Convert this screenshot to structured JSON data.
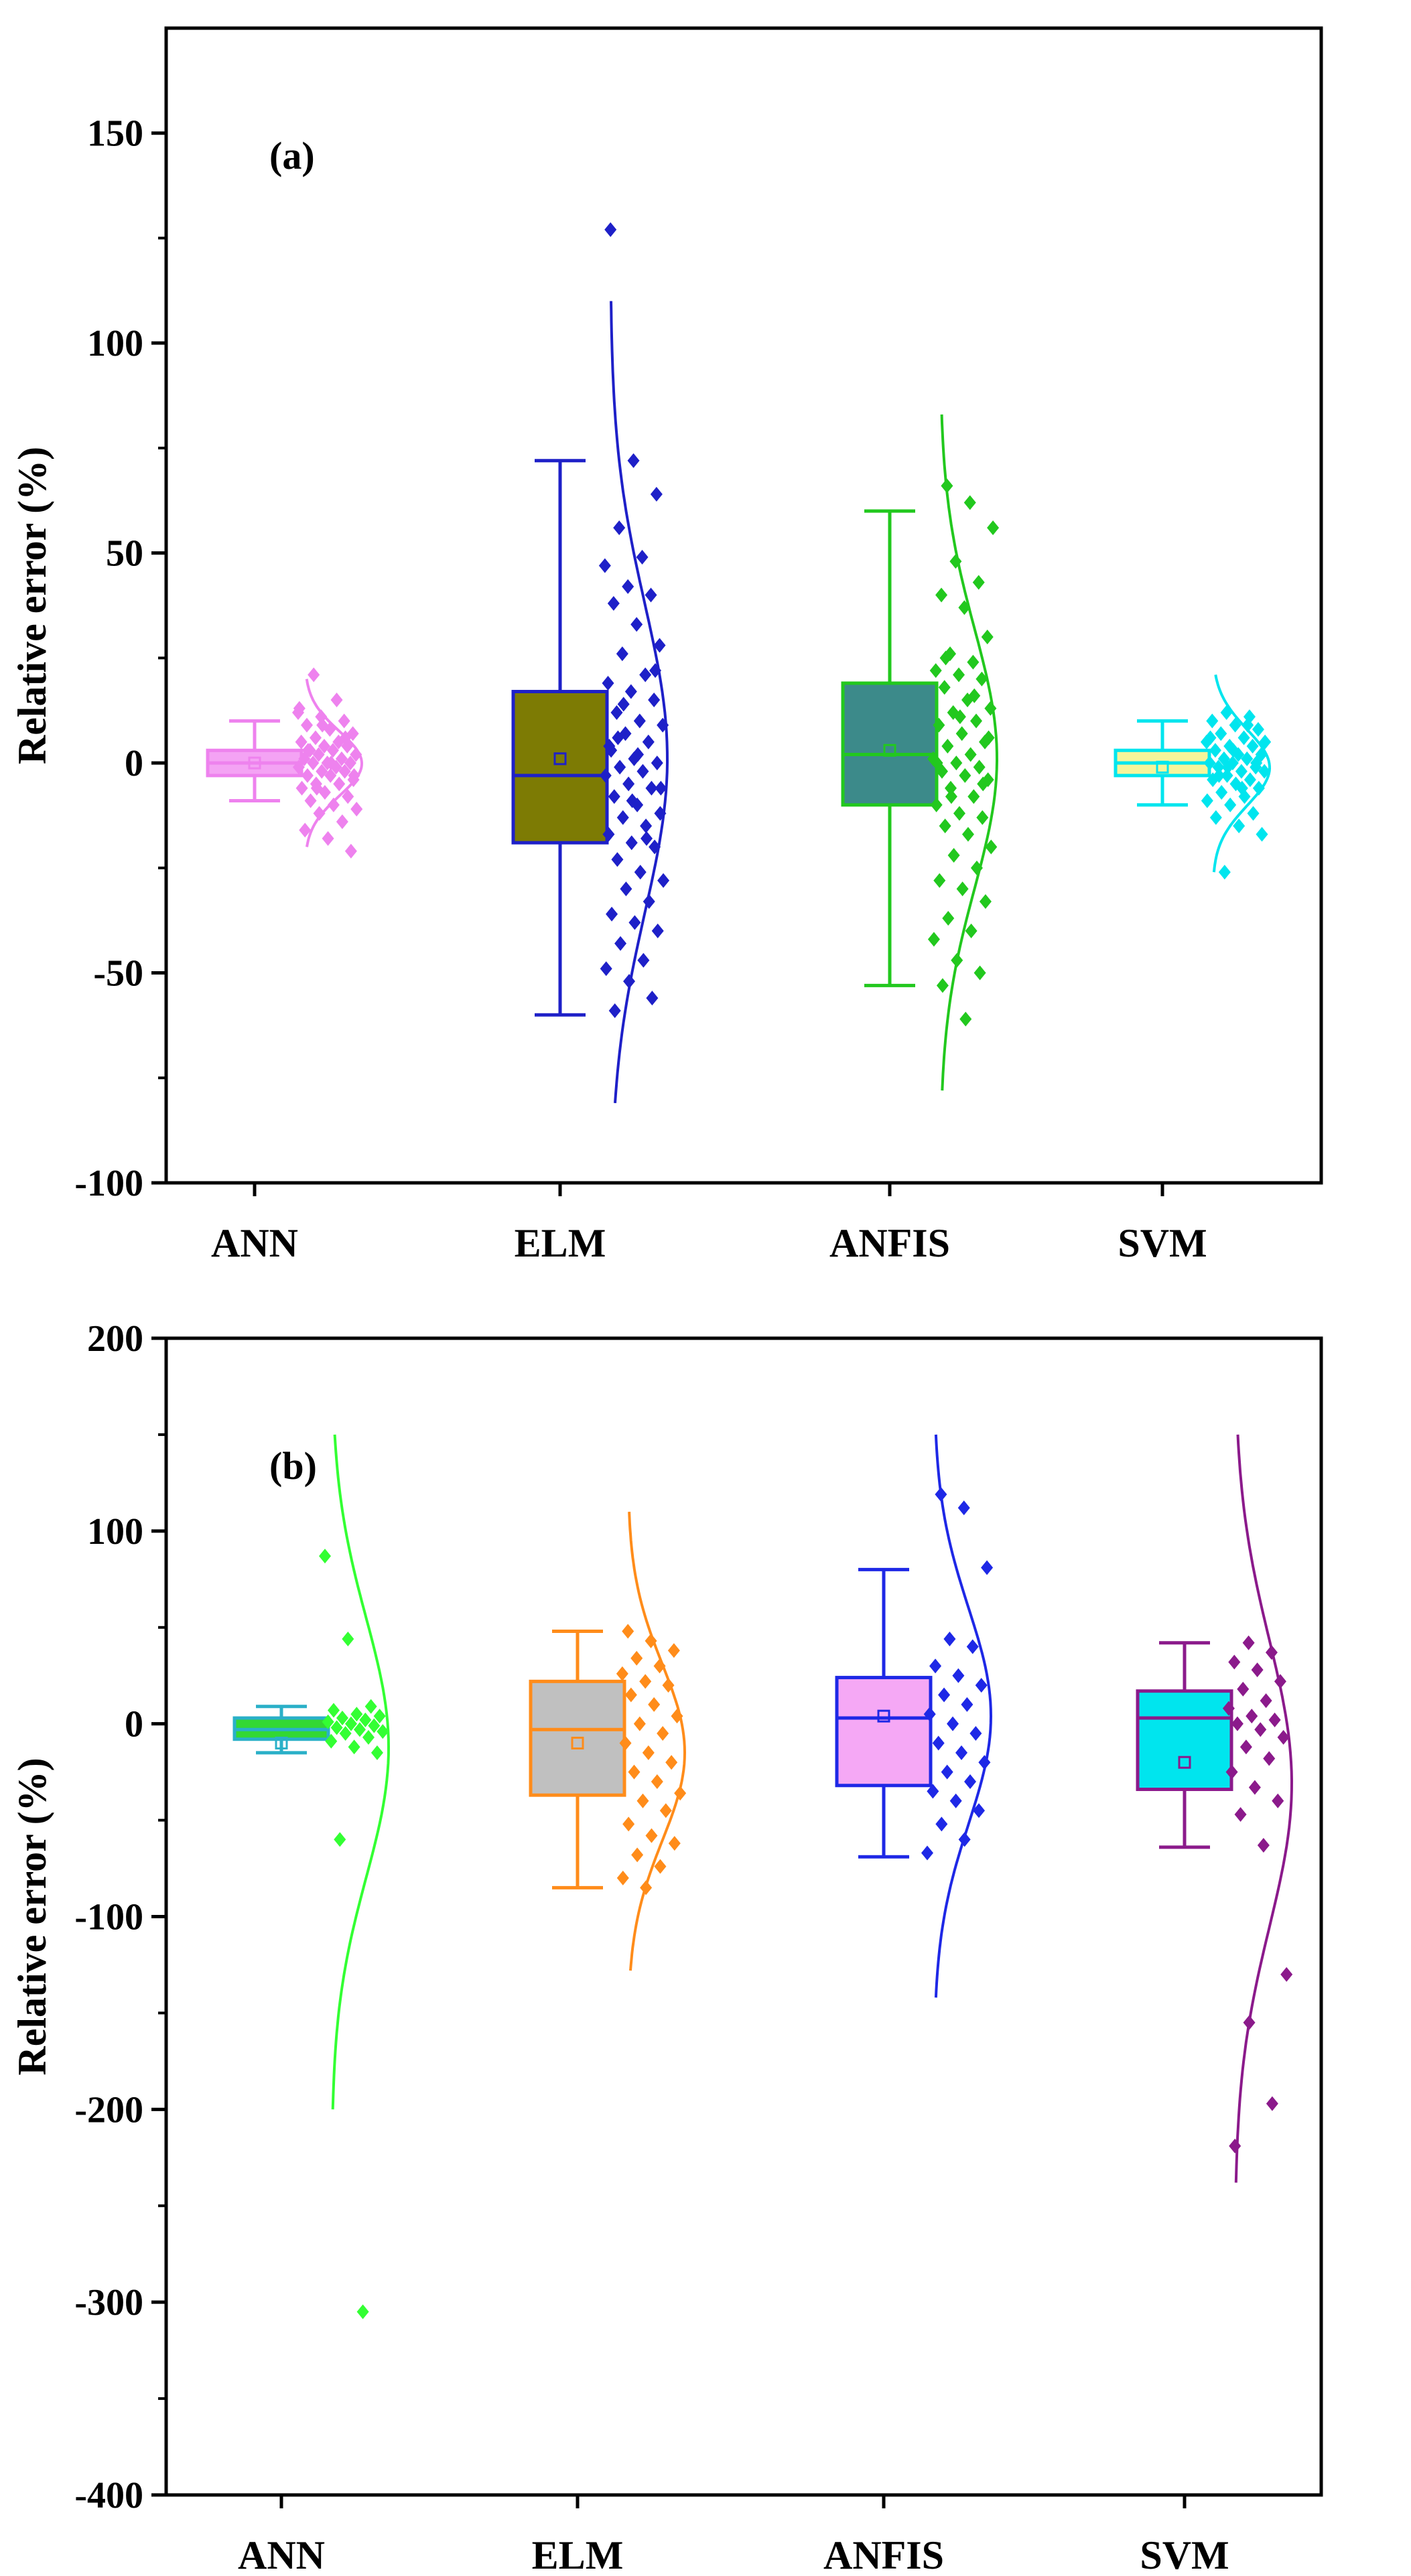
{
  "chart_data": [
    {
      "type": "box",
      "panel_label": "(a)",
      "ylabel": "Relative error (%)",
      "xlabel": "",
      "ylim": [
        -100,
        175
      ],
      "yticks": [
        -100,
        -50,
        0,
        50,
        100,
        150
      ],
      "tick_labels": [
        "-100",
        "-50",
        "0",
        "50",
        "100",
        "150"
      ],
      "categories": [
        "ANN",
        "ELM",
        "ANFIS",
        "SVM"
      ],
      "series": [
        {
          "name": "ANN",
          "box_color": "#f4a3f4",
          "stroke_color": "#ee82ee",
          "point_color": "#ee82ee",
          "whisker_low": -9,
          "q1": -3,
          "median": 0,
          "q3": 3,
          "whisker_high": 10,
          "mean": 0,
          "curve_range": [
            -20,
            20
          ],
          "points": [
            12,
            11,
            10,
            9,
            8,
            7,
            6,
            5,
            5,
            4,
            4,
            3,
            3,
            2,
            2,
            1,
            1,
            0,
            0,
            0,
            -1,
            -1,
            -2,
            -2,
            -3,
            -3,
            -4,
            -5,
            -5,
            -6,
            -7,
            -8,
            -9,
            -10,
            -11,
            -12,
            -14,
            -16,
            -18,
            -21,
            21,
            15,
            13,
            9,
            6,
            3,
            0,
            -3,
            -6
          ]
        },
        {
          "name": "ELM",
          "box_color": "#7d7b04",
          "stroke_color": "#1e20c8",
          "point_color": "#1e20c8",
          "whisker_low": -60,
          "q1": -19,
          "median": -3,
          "q3": 17,
          "whisker_high": 72,
          "mean": 1,
          "curve_range": [
            -81,
            110
          ],
          "points": [
            127,
            72,
            64,
            56,
            49,
            47,
            42,
            40,
            38,
            33,
            28,
            26,
            21,
            19,
            17,
            15,
            12,
            10,
            9,
            7,
            5,
            3,
            1,
            0,
            -1,
            -2,
            -3,
            -5,
            -6,
            -8,
            -10,
            -12,
            -13,
            -15,
            -17,
            -19,
            -20,
            -23,
            -26,
            -28,
            -30,
            -33,
            -36,
            -38,
            -40,
            -43,
            -47,
            -49,
            -52,
            -56,
            -59,
            2,
            -6,
            14,
            -18,
            4,
            -9,
            22,
            6
          ]
        },
        {
          "name": "ANFIS",
          "box_color": "#3c8a8a",
          "stroke_color": "#22c81e",
          "point_color": "#22c81e",
          "whisker_low": -53,
          "q1": -10,
          "median": 2,
          "q3": 19,
          "whisker_high": 60,
          "mean": 3,
          "curve_range": [
            -78,
            83
          ],
          "points": [
            66,
            62,
            56,
            48,
            43,
            40,
            37,
            30,
            26,
            24,
            22,
            21,
            20,
            18,
            15,
            13,
            12,
            10,
            9,
            7,
            5,
            4,
            2,
            1,
            0,
            -1,
            -2,
            -3,
            -4,
            -6,
            -8,
            -10,
            -12,
            -13,
            -15,
            -17,
            -20,
            -22,
            -25,
            -28,
            -30,
            -33,
            -37,
            -40,
            -42,
            -47,
            -50,
            -53,
            -61,
            6,
            -8,
            16,
            0,
            11,
            -5,
            25
          ]
        },
        {
          "name": "SVM",
          "box_color": "#f5f59a",
          "stroke_color": "#00e5ee",
          "point_color": "#00e5ee",
          "whisker_low": -10,
          "q1": -3,
          "median": 0,
          "q3": 3,
          "whisker_high": 10,
          "mean": -1,
          "curve_range": [
            -26,
            21
          ],
          "points": [
            12,
            11,
            10,
            9,
            8,
            7,
            6,
            5,
            4,
            4,
            3,
            2,
            2,
            1,
            1,
            0,
            0,
            -1,
            -1,
            -2,
            -2,
            -3,
            -4,
            -4,
            -5,
            -6,
            -7,
            -8,
            -9,
            -10,
            -12,
            -13,
            -15,
            -17,
            -26,
            9,
            6,
            3,
            0,
            -3,
            -6,
            5,
            -1
          ]
        }
      ]
    },
    {
      "type": "box",
      "panel_label": "(b)",
      "ylabel": "Relative error (%)",
      "xlabel": "",
      "ylim": [
        -400,
        200
      ],
      "yticks": [
        -400,
        -300,
        -200,
        -100,
        0,
        100,
        200
      ],
      "tick_labels": [
        "-400",
        "-300",
        "-200",
        "-100",
        "0",
        "100",
        "200"
      ],
      "categories": [
        "ANN",
        "ELM",
        "ANFIS",
        "SVM"
      ],
      "series": [
        {
          "name": "ANN",
          "box_color": "#33d833",
          "stroke_color": "#2ab0c8",
          "point_color": "#33ff33",
          "whisker_low": -15,
          "q1": -8,
          "median": -3,
          "q3": 3,
          "whisker_high": 9,
          "mean": -10,
          "curve_range": [
            -200,
            150
          ],
          "points": [
            87,
            44,
            9,
            7,
            5,
            4,
            3,
            2,
            1,
            0,
            -1,
            -2,
            -3,
            -4,
            -5,
            -7,
            -9,
            -12,
            -15,
            -60,
            -305
          ]
        },
        {
          "name": "ELM",
          "box_color": "#c0c0c0",
          "stroke_color": "#ff8c1a",
          "point_color": "#ff8c1a",
          "whisker_low": -85,
          "q1": -37,
          "median": -3,
          "q3": 22,
          "whisker_high": 48,
          "mean": -10,
          "curve_range": [
            -128,
            110
          ],
          "points": [
            48,
            43,
            38,
            34,
            30,
            26,
            22,
            20,
            15,
            10,
            4,
            0,
            -5,
            -10,
            -15,
            -20,
            -25,
            -30,
            -36,
            -40,
            -45,
            -52,
            -58,
            -62,
            -68,
            -74,
            -80,
            -85
          ]
        },
        {
          "name": "ANFIS",
          "box_color": "#f5a8f5",
          "stroke_color": "#1e28e6",
          "point_color": "#1e28e6",
          "whisker_low": -69,
          "q1": -32,
          "median": 3,
          "q3": 24,
          "whisker_high": 80,
          "mean": 4,
          "curve_range": [
            -142,
            150
          ],
          "points": [
            119,
            112,
            81,
            44,
            40,
            30,
            25,
            20,
            15,
            10,
            5,
            0,
            -5,
            -10,
            -15,
            -20,
            -25,
            -30,
            -35,
            -40,
            -45,
            -52,
            -60,
            -67
          ]
        },
        {
          "name": "SVM",
          "box_color": "#00e5ee",
          "stroke_color": "#8b1a8b",
          "point_color": "#8b1a8b",
          "whisker_low": -64,
          "q1": -34,
          "median": 3,
          "q3": 17,
          "whisker_high": 42,
          "mean": -20,
          "curve_range": [
            -238,
            150
          ],
          "points": [
            42,
            37,
            32,
            28,
            22,
            18,
            12,
            8,
            4,
            2,
            0,
            -3,
            -7,
            -12,
            -18,
            -25,
            -33,
            -40,
            -47,
            -63,
            -130,
            -155,
            -197,
            -219
          ]
        }
      ]
    }
  ]
}
